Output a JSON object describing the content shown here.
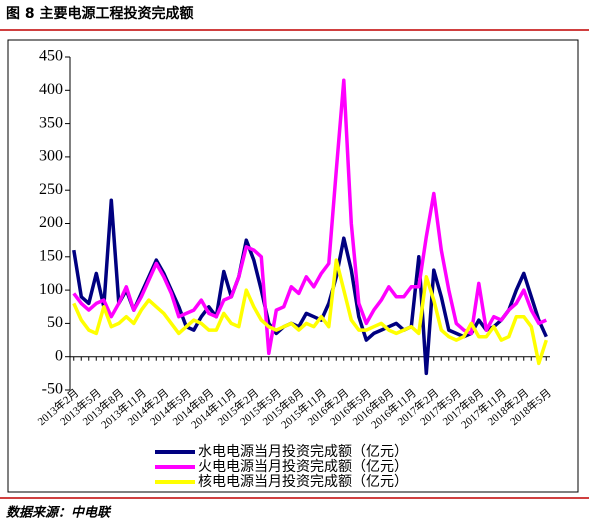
{
  "chart_data": {
    "type": "line",
    "title": "图 8 主要电源工程投资完成额",
    "source": "数据来源：中电联",
    "categories": [
      "2013年2月",
      null,
      null,
      "2013年5月",
      null,
      null,
      "2013年8月",
      null,
      null,
      "2013年11月",
      null,
      null,
      "2014年2月",
      null,
      null,
      "2014年5月",
      null,
      null,
      "2014年8月",
      null,
      null,
      "2014年11月",
      null,
      null,
      "2015年2月",
      null,
      null,
      "2015年5月",
      null,
      null,
      "2015年8月",
      null,
      null,
      "2015年11月",
      null,
      null,
      "2016年2月",
      null,
      null,
      "2016年5月",
      null,
      null,
      "2016年8月",
      null,
      null,
      "2016年11月",
      null,
      null,
      "2017年2月",
      null,
      null,
      "2017年5月",
      null,
      null,
      "2017年8月",
      null,
      null,
      "2017年11月",
      null,
      null,
      "2018年2月",
      null,
      null,
      "2018年5月"
    ],
    "series": [
      {
        "name": "水电电源当月投资完成额（亿元）",
        "color": "#000080",
        "values": [
          160,
          90,
          80,
          125,
          75,
          235,
          80,
          100,
          70,
          95,
          120,
          145,
          125,
          100,
          75,
          45,
          40,
          60,
          75,
          60,
          128,
          90,
          120,
          175,
          145,
          100,
          50,
          35,
          45,
          50,
          45,
          65,
          60,
          55,
          80,
          120,
          178,
          130,
          60,
          25,
          35,
          40,
          45,
          50,
          40,
          45,
          150,
          -25,
          130,
          90,
          40,
          35,
          30,
          35,
          55,
          40,
          45,
          55,
          70,
          100,
          125,
          90,
          55,
          30
        ]
      },
      {
        "name": "火电电源当月投资完成额（亿元）",
        "color": "#ff00ff",
        "values": [
          95,
          80,
          70,
          80,
          85,
          60,
          80,
          105,
          70,
          90,
          115,
          140,
          120,
          95,
          60,
          65,
          70,
          85,
          65,
          60,
          85,
          90,
          120,
          165,
          160,
          150,
          5,
          70,
          75,
          105,
          95,
          120,
          105,
          125,
          140,
          280,
          415,
          200,
          80,
          50,
          70,
          85,
          105,
          90,
          90,
          105,
          105,
          180,
          245,
          160,
          100,
          50,
          40,
          35,
          110,
          40,
          60,
          55,
          70,
          80,
          100,
          70,
          50,
          55
        ]
      },
      {
        "name": "核电电源当月投资完成额（亿元）",
        "color": "#ffff00",
        "values": [
          80,
          55,
          40,
          35,
          75,
          45,
          50,
          60,
          50,
          70,
          85,
          75,
          65,
          50,
          35,
          45,
          55,
          50,
          40,
          40,
          65,
          50,
          45,
          100,
          75,
          55,
          45,
          40,
          45,
          50,
          40,
          50,
          45,
          60,
          45,
          145,
          100,
          55,
          40,
          40,
          45,
          50,
          40,
          35,
          40,
          45,
          35,
          120,
          85,
          40,
          30,
          25,
          30,
          50,
          30,
          30,
          45,
          25,
          30,
          60,
          60,
          45,
          -10,
          25
        ]
      }
    ],
    "ylim": [
      -50,
      450
    ],
    "yticks": [
      -50,
      0,
      50,
      100,
      150,
      200,
      250,
      300,
      350,
      400,
      450
    ]
  }
}
